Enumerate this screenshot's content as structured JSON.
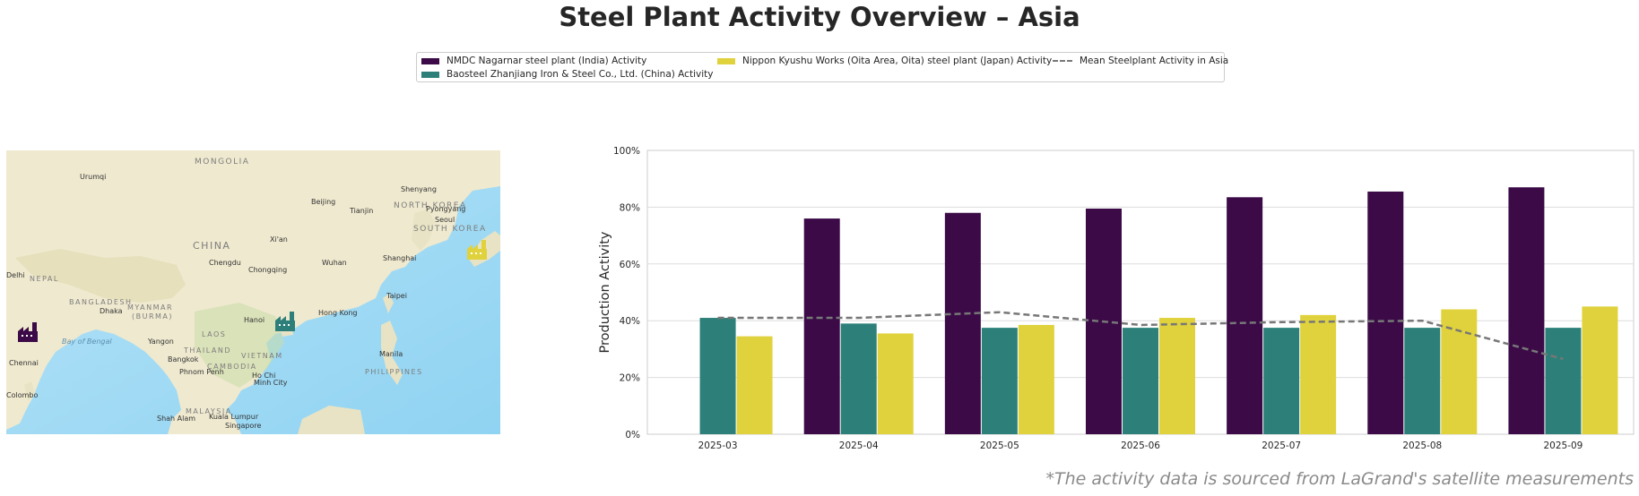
{
  "title": "Steel Plant Activity Overview – Asia",
  "footnote": "*The activity data is sourced from LaGrand's satellite measurements",
  "legend": {
    "items": [
      {
        "label": "NMDC Nagarnar steel plant (India) Activity",
        "color": "#3b0a47",
        "kind": "bar"
      },
      {
        "label": "Baosteel Zhanjiang Iron & Steel Co., Ltd. (China) Activity",
        "color": "#2d8079",
        "kind": "bar"
      },
      {
        "label": "Nippon Kyushu Works (Oita Area, Oita) steel plant (Japan) Activity",
        "color": "#e0d23c",
        "kind": "bar"
      },
      {
        "label": "Mean Steelplant Activity in Asia",
        "color": "#777777",
        "kind": "line"
      }
    ]
  },
  "map": {
    "labels": {
      "mongolia": "MONGOLIA",
      "china": "CHINA",
      "urumqi": "Urumqi",
      "beijing": "Beijing",
      "tianjin": "Tianjin",
      "shenyang": "Shenyang",
      "pyongyang": "Pyongyang",
      "north_korea": "NORTH KOREA",
      "seoul": "Seoul",
      "south_korea": "SOUTH KOREA",
      "xian": "Xi'an",
      "chengdu": "Chengdu",
      "chongqing": "Chongqing",
      "wuhan": "Wuhan",
      "shanghai": "Shanghai",
      "delhi": "Delhi",
      "nepal": "NEPAL",
      "bangladesh": "BANGLADESH",
      "dhaka": "Dhaka",
      "myanmar": "MYANMAR",
      "burma": "(BURMA)",
      "hanoi": "Hanoi",
      "hong_kong": "Hong Kong",
      "taipei": "Taipei",
      "laos": "LAOS",
      "bay_of_bengal": "Bay of Bengal",
      "yangon": "Yangon",
      "thailand": "THAILAND",
      "vietnam": "VIETNAM",
      "bangkok": "Bangkok",
      "cambodia": "CAMBODIA",
      "phnom_penh": "Phnom Penh",
      "ho_chi_minh": "Ho Chi",
      "ho_chi_minh_2": "Minh City",
      "manila": "Manila",
      "philippines": "PHILIPPINES",
      "chennai": "Chennai",
      "colombo": "Colombo",
      "malaysia": "MALAYSIA",
      "kuala_lumpur": "Kuala Lumpur",
      "shah_alam": "Shah Alam",
      "singapore": "Singapore"
    },
    "markers": [
      {
        "name": "NMDC Nagarnar",
        "color": "#3b0a47",
        "icon": "factory-icon"
      },
      {
        "name": "Baosteel Zhanjiang",
        "color": "#2d8079",
        "icon": "factory-icon"
      },
      {
        "name": "Nippon Kyushu Works",
        "color": "#e0d23c",
        "icon": "factory-icon"
      }
    ]
  },
  "chart_data": {
    "type": "bar",
    "categories": [
      "2025-03",
      "2025-04",
      "2025-05",
      "2025-06",
      "2025-07",
      "2025-08",
      "2025-09"
    ],
    "series": [
      {
        "name": "NMDC Nagarnar steel plant (India) Activity",
        "color": "#3b0a47",
        "values": [
          null,
          76,
          78,
          79.5,
          83.5,
          85.5,
          87
        ]
      },
      {
        "name": "Baosteel Zhanjiang Iron & Steel Co., Ltd. (China) Activity",
        "color": "#2d8079",
        "values": [
          41,
          39,
          37.5,
          37.5,
          37.5,
          37.5,
          37.5
        ]
      },
      {
        "name": "Nippon Kyushu Works (Oita Area, Oita) steel plant (Japan) Activity",
        "color": "#e0d23c",
        "values": [
          34.5,
          35.5,
          38.5,
          41,
          42,
          44,
          45
        ]
      }
    ],
    "line": {
      "name": "Mean Steelplant Activity in Asia",
      "color": "#777777",
      "style": "dashed",
      "values": [
        41,
        41,
        43,
        38.5,
        39.5,
        40,
        26.5
      ]
    },
    "ylabel": "Production Activity",
    "xlabel": "",
    "ylim": [
      0,
      100
    ],
    "yticks": [
      "0%",
      "20%",
      "40%",
      "60%",
      "80%",
      "100%"
    ],
    "grid": "horizontal",
    "legend_position": "top-center"
  }
}
